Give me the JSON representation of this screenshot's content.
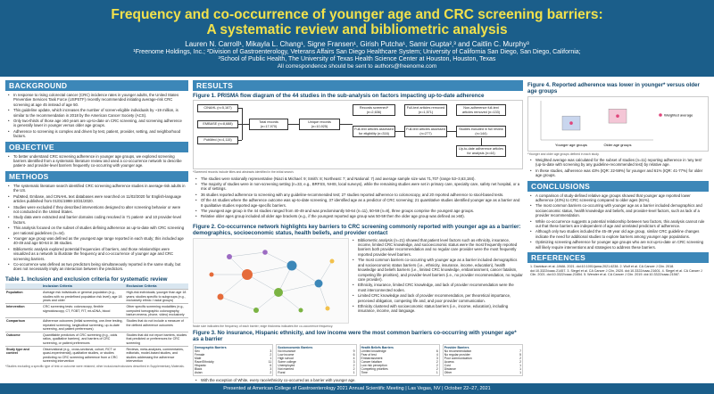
{
  "header": {
    "title_line1": "Frequency and co-occurrence of younger age and CRC screening barriers:",
    "title_line2": "A systematic review and bibliometric analysis",
    "authors": "Lauren N. Carroll¹, Mikayla L. Chang¹, Signe Fransen¹, Girish Putcha¹, Samir Gupta²,³ and Caitlin C. Murphy³",
    "aff1": "¹Freenome Holdings, Inc.; ²Division of Gastroenterology, Veterans Affairs San Diego Healthcare System; University of California San Diego, San Diego, California;",
    "aff2": "³School of Public Health, The University of Texas Health Science Center at Houston, Houston, Texas",
    "contact": "All correspondence should be sent to authors@freenome.com"
  },
  "background": {
    "heading": "BACKGROUND",
    "bullets": [
      "In response to rising colorectal cancer (CRC) incidence rates in younger adults, the United States Preventive Services Task Force (USPSTF) recently recommended initiating average-risk CRC screening at age 45 instead of age 50.",
      "This guideline update, which increases the number of screen-eligible individuals by ~19 million, is similar to the recommendation in 2018 by the American Cancer Society (ACS).",
      "Only two-thirds of those age ≥50 years are up-to-date on CRC screening, and screening adherence is generally lower in younger versus older age groups.",
      "Adherence to screening is complex and driven by test, patient, provider, setting, and neighborhood factors."
    ]
  },
  "objective": {
    "heading": "OBJECTIVE",
    "bullets": [
      "To better understand CRC screening adherence in younger age groups, we explored screening barriers identified from a systematic literature review and used a co-occurrence network to describe patient- and provider-level barriers frequently co-occurring with younger age."
    ]
  },
  "methods": {
    "heading": "METHODS",
    "bullets": [
      "The systematic literature search identified CRC screening adherence studies in average-risk adults in the US.",
      "PubMed, Embase, and CINAHL text databases were searched on 11/02/2020 for English-language articles published from 01/01/1998-10/31/2020.",
      "Studies were excluded if they described interventions designed to alter screening behavior or were not conducted in the United States.",
      "Study data were extracted and barrier domains coding resolved in 71 patient- and 10 provider-level factors.",
      "This analysis focused on the subset of studies defining adherence as up-to-date with CRC screening per national guidelines (n=44).",
      "Younger age group was defined as the youngest age range reported in each study; this included age 40-49 and age 50-64 in 38 studies.",
      "Bibliometric analysis explored potential frequencies of barriers, and those relationships were visualized as a network to illustrate the frequency and co-occurrence of younger age and CRC screening barriers.",
      "Co-occurrence was defined as two predictors being simultaneously reported in the same study, but does not necessarily imply an interaction between the predictors."
    ]
  },
  "table1": {
    "title": "Table 1. Inclusion and exclusion criteria for systematic review",
    "headers": [
      "",
      "Inclusion Criteria",
      "Exclusion Criteria"
    ],
    "rows": [
      [
        "Population",
        "Average risk individuals or general population (e.g., studies with no predefined population risk level); age 18 years and older",
        "High-risk individuals; younger than age 18 years; studies specific to subgroups (e.g., exclusively ethnic / racial groups)"
      ],
      [
        "Intervention",
        "CRC screening tests: colonoscopy, flexible sigmoidoscopy, CT, FOBT, FIT, mt-sDNA, blood",
        "Other specific screening modalities (e.g., computed tomographic colonography, barium enema, phone, video) exclusively"
      ],
      [
        "Comparison",
        "Adherence outcomes (initial screening, one-time testing, repeated screening, longitudinal screening, up-to-date screening, and patient preferences)",
        "Studies that do not include a measure of the defined adherence outcomes"
      ],
      [
        "Outcome",
        "Quantifiable predictors of CRC screening (e.g., odds ratios, qualitative barriers), and barriers of CRC screening, or patient preferences",
        "Studies that did not report barriers, studies that predicted or preferences for CRC screening"
      ],
      [
        "Study type and context",
        "Observational (e.g., cross-sectional, cohort, RCT or quasi-experimental), qualitative studies, or studies predicting no CRC screening adherence from a CRC screening intervention",
        "Reviews, meta-analyses, commentaries, editorials, model-based studies, and studies addressing the adherence intervention"
      ]
    ],
    "note": "*Studies excluding a specific type of test or outcome were retained; other inclusions/exclusions described in Supplementary Materials."
  },
  "results": {
    "heading": "RESULTS",
    "fig1_title": "Figure 1. PRISMA flow diagram of the 44 studies in the sub-analysis on factors impacting up-to-date adherence",
    "prisma": {
      "sources": [
        "CINAHL (n=5,167)",
        "EMBASE (n=8,688)",
        "PubMed (n=4,115)"
      ],
      "total": "Total records (n=17,970)",
      "unique": "Unique records (n=10,925)",
      "screened": "Records screened* (n=2,636)",
      "ft_assessed": "Full-text articles assessed for eligibility (n=316)",
      "ft_removed": "Full-text articles removed (n=1,571)",
      "included": "Full-text articles assessed (n=277)",
      "nonadherence": "Non-adherence full-text articles removed (n=133)",
      "final_included": "Studies included in full review (n=144)",
      "utd": "Up-to-date adherence articles for analysis (n=44)"
    },
    "fig1_note": "*Screened records include titles and abstracts identified in the initial search.",
    "fig1_bullets": [
      "The studies were nationally representative (Niazi & Michael: 9; Smith: 8; Northeast: 7; and National: 7) and average sample size was 71,707 (range 53–3,63,184).",
      "The majority of studies were in non-screening setting (n=33, e.g., BRFSS, NHIS, local surveys), while the remaining studies were set in primary care, specialty care, safety net hospital, or a mix of settings.",
      "36 studies reported adherence to screening with any guideline-recommended test; 27 studies reported adherence to colonoscopy, and 20 reported adherence to stool-based tests.",
      "Of the 44 studies where the adherence outcome was up-to-date screening, 37 identified age as a predictor of CRC screening; 21 quantitative studies identified younger age as a barrier and 8 qualitative studies reported age-specific barriers.",
      "The youngest age group in the 44 studies ranged from 40-49 and was predominantly 50-64 (n=11), 50-59 (n=8), three groups comprise the youngest age groups.",
      "Relative older ages group included all older age brackets (e.g., if the youngest reported age group was 50-59 then the older age group was defined as ≥60)."
    ],
    "fig2_title": "Figure 2. Co-occurrence network highlights key barriers to CRC screening commonly reported with younger age as a barrier: demographics, socioeconomic status, health beliefs, and provider contact",
    "fig2_bullets": [
      "Bibliometric analysis (n=21) showed that patient level factors such as ethnicity, insurance, income, limited CRC knowledge, and socioeconomic status were the most frequently reported barriers both provider recommendation and no regular care provider were the most frequently reported provider-level barriers.",
      "The most common barriers co-occurring with younger age as a barrier included demographics and socioeconomic status barriers (i.e., ethnicity, insurance, income, education), health knowledge and beliefs barriers (i.e., limited CRC knowledge, embarrassment, cancer fatalism, competing life priorities), and provider-level barriers (i.e., no provider recommendation, no regular care provider).",
      "Ethnicity, insurance, limited CRC knowledge, and lack of provider recommendation were the most interconnected nodes.",
      "Limited CRC knowledge and lack of provider recommendation, per theoretical importance, perceived obligation, competing life and, and poor provider communication.",
      "Ethnicity clustered with socioeconomic status barriers (i.e., income, education), including insurance, income, and language."
    ],
    "fig2_note": "Node size indicates the frequency of each barrier; edge thickness indicates the co-occurrence frequency.",
    "fig3_title": "Figure 3. No insurance, Hispanic ethnicity, and low income were the most common barriers co-occurring with younger age* as a barrier",
    "fig3_tables": [
      {
        "title": "Demographic Barriers",
        "rows": [
          [
            "Sex",
            "3"
          ],
          [
            "Female",
            "2"
          ],
          [
            "Male",
            "1"
          ],
          [
            "Race/Ethnicity",
            "11"
          ],
          [
            "Hispanic",
            "6"
          ],
          [
            "Black",
            "3"
          ],
          [
            "Asian",
            "2"
          ]
        ]
      },
      {
        "title": "Socioeconomic Barriers",
        "rows": [
          [
            "No insurance",
            "9"
          ],
          [
            "Low income",
            "6"
          ],
          [
            "High school",
            "4"
          ],
          [
            "Some college",
            "3"
          ],
          [
            "Unemployed",
            "2"
          ],
          [
            "Not married",
            "2"
          ],
          [
            "Rural",
            "1"
          ]
        ]
      },
      {
        "title": "Health Beliefs Barriers",
        "rows": [
          [
            "Limited knowledge",
            "6"
          ],
          [
            "Fear of test",
            "4"
          ],
          [
            "Embarrassment",
            "3"
          ],
          [
            "Cancer fatalism",
            "2"
          ],
          [
            "Low risk perception",
            "2"
          ],
          [
            "Competing priorities",
            "2"
          ],
          [
            "Time",
            "1"
          ]
        ]
      },
      {
        "title": "Provider Barriers",
        "rows": [
          [
            "No recommendation",
            "7"
          ],
          [
            "No regular provider",
            "5"
          ],
          [
            "Poor communication",
            "2"
          ],
          [
            "Access",
            "2"
          ],
          [
            "Cost",
            "1"
          ],
          [
            "Distance",
            "1"
          ],
          [
            "Other",
            "1"
          ]
        ]
      }
    ],
    "fig3_bullets": [
      "With the exception of White, every race/ethnicity co-occurred as a barrier with younger age.",
      "Factors associated with low socioeconomic status co-occurred with younger age as a barrier, such as less than a high school education, lower income, no health insurance, and individuals who are uninsured."
    ]
  },
  "fig4": {
    "title": "Figure 4. Reported adherence was lower in younger* versus older age groups",
    "legend": "Weighted average",
    "xlabels": [
      "Younger age groups",
      "Older age groups"
    ],
    "note": "*Younger and older age groups defined in each study.",
    "bullets": [
      "Weighted average was calculated for the subset of studies (n=11) reporting adherence in 'any test' (up-to-date with screening by any guideline-recommended test) by relative age.",
      "In these studies, adherence was 43% (IQR: 22-59%) for younger and 61% (IQR: 41-77%) for older age groups."
    ]
  },
  "chart_data": {
    "type": "box",
    "categories": [
      "Younger age groups",
      "Older age groups"
    ],
    "values": [
      43,
      61
    ],
    "ylim": [
      0,
      100
    ],
    "xlabel": "",
    "ylabel": ""
  },
  "conclusions": {
    "heading": "CONCLUSIONS",
    "bullets": [
      "A comparison of study-defined relative age groups showed that younger age reported lower adherence (43%) to CRC screening compared to older ages (61%).",
      "The most common barriers co-occurring with younger age as a barrier included demographics and socioeconomic status, health knowledge and beliefs, and provider-level factors, such as lack of a provider recommendation.",
      "While co-occurrence suggests a potential relationship between two factors, this analysis cannot rule out that these barriers are independent of age and unrelated predictors of adherence.",
      "Although only two studies included the 45-49 year old age group, similar CRC guideline changes indicate the need for additional studies to explore barriers among younger age populations.",
      "Optimizing screening adherence for younger age groups who are not up-to-date on CRC screening will likely require interventions and strategies to address these barriers."
    ]
  },
  "references": {
    "heading": "REFERENCES",
    "text": "1. Davidson et al. JAMA. 2021. doi:10.1001/jama.2021.6238. 2. Wolf et al. CA Cancer J Clin. 2018. doi:10.3322/caac.21457. 3. Siegel et al. CA Cancer J Clin. 2020. doi:10.3322/caac.21601. 4. Siegel et al. CA Cancer J Clin. 2021. doi:10.3322/caac.21654. 5. Wender et al. CA Cancer J Clin. 2019. doi:10.3322/caac.21567."
  },
  "footer": {
    "text": "Presented at American College of Gastroenterology 2021 Annual Scientific Meeting | Las Vegas, NV | October 22–27, 2021"
  },
  "colors": {
    "header_bg": "#1b5e8a",
    "title_yellow": "#f2e14c",
    "section_blue": "#3c87b8",
    "younger_box": "#c9d6ee",
    "older_box": "#f4c6d6",
    "weighted_marker": "#e0457b"
  }
}
